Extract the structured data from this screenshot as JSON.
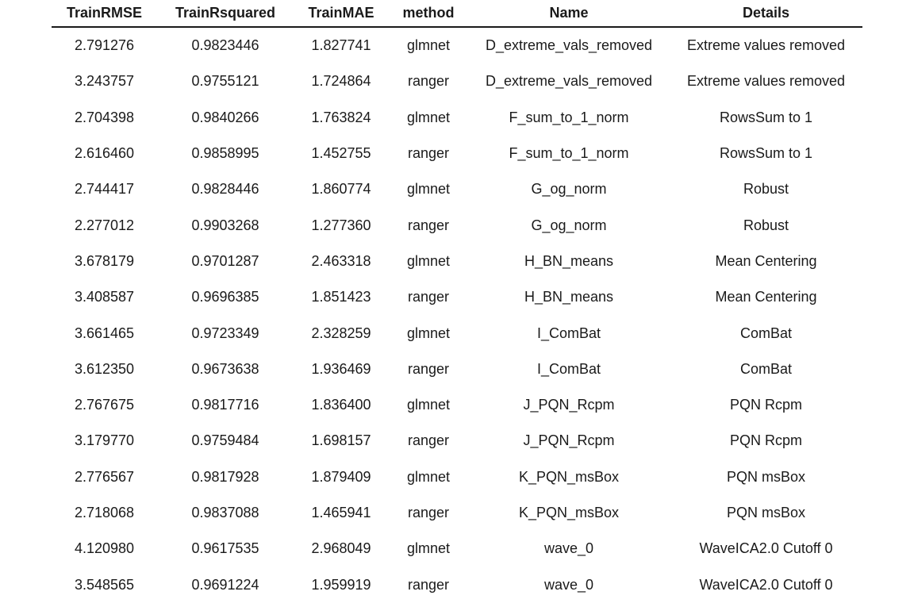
{
  "table": {
    "columns": [
      "TrainRMSE",
      "TrainRsquared",
      "TrainMAE",
      "method",
      "Name",
      "Details"
    ],
    "rows": [
      [
        "2.791276",
        "0.9823446",
        "1.827741",
        "glmnet",
        "D_extreme_vals_removed",
        "Extreme values removed"
      ],
      [
        "3.243757",
        "0.9755121",
        "1.724864",
        "ranger",
        "D_extreme_vals_removed",
        "Extreme values removed"
      ],
      [
        "2.704398",
        "0.9840266",
        "1.763824",
        "glmnet",
        "F_sum_to_1_norm",
        "RowsSum to 1"
      ],
      [
        "2.616460",
        "0.9858995",
        "1.452755",
        "ranger",
        "F_sum_to_1_norm",
        "RowsSum to 1"
      ],
      [
        "2.744417",
        "0.9828446",
        "1.860774",
        "glmnet",
        "G_og_norm",
        "Robust"
      ],
      [
        "2.277012",
        "0.9903268",
        "1.277360",
        "ranger",
        "G_og_norm",
        "Robust"
      ],
      [
        "3.678179",
        "0.9701287",
        "2.463318",
        "glmnet",
        "H_BN_means",
        "Mean Centering"
      ],
      [
        "3.408587",
        "0.9696385",
        "1.851423",
        "ranger",
        "H_BN_means",
        "Mean Centering"
      ],
      [
        "3.661465",
        "0.9723349",
        "2.328259",
        "glmnet",
        "I_ComBat",
        "ComBat"
      ],
      [
        "3.612350",
        "0.9673638",
        "1.936469",
        "ranger",
        "I_ComBat",
        "ComBat"
      ],
      [
        "2.767675",
        "0.9817716",
        "1.836400",
        "glmnet",
        "J_PQN_Rcpm",
        "PQN Rcpm"
      ],
      [
        "3.179770",
        "0.9759484",
        "1.698157",
        "ranger",
        "J_PQN_Rcpm",
        "PQN Rcpm"
      ],
      [
        "2.776567",
        "0.9817928",
        "1.879409",
        "glmnet",
        "K_PQN_msBox",
        "PQN msBox"
      ],
      [
        "2.718068",
        "0.9837088",
        "1.465941",
        "ranger",
        "K_PQN_msBox",
        "PQN msBox"
      ],
      [
        "4.120980",
        "0.9617535",
        "2.968049",
        "glmnet",
        "wave_0",
        "WaveICA2.0 Cutoff 0"
      ],
      [
        "3.548565",
        "0.9691224",
        "1.959919",
        "ranger",
        "wave_0",
        "WaveICA2.0 Cutoff 0"
      ]
    ]
  }
}
